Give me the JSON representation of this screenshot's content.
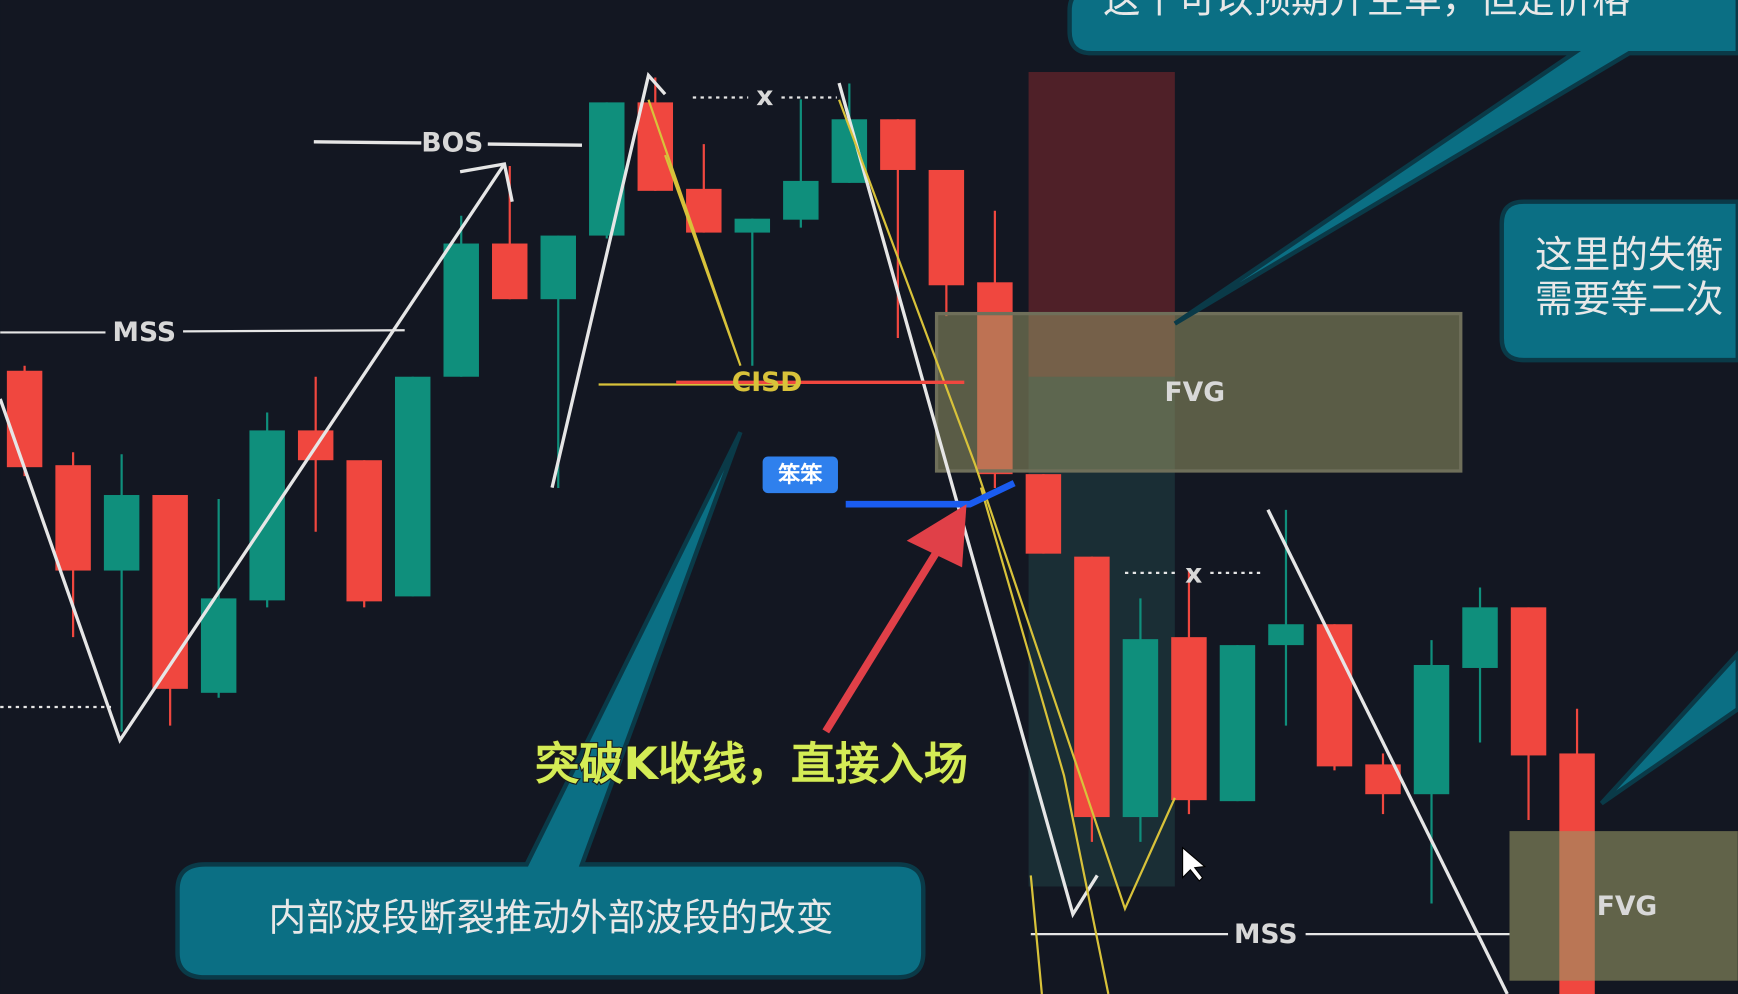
{
  "chart_data": {
    "type": "candlestick",
    "up_color": "#0f8f7c",
    "down_color": "#f0473f",
    "ylim": [
      0,
      100
    ],
    "open": [
      62.7,
      53.2,
      42.6,
      50.2,
      30.3,
      39.6,
      56.7,
      53.7,
      40.0,
      62.1,
      75.5,
      69.9,
      76.3,
      89.7,
      81.0,
      76.6,
      77.9,
      81.6,
      88.0,
      82.9,
      71.6,
      52.3,
      44.0,
      17.8,
      35.9,
      19.4,
      35.1,
      37.2,
      23.1,
      20.1,
      32.8,
      38.9,
      24.2
    ],
    "high": [
      63.2,
      54.5,
      54.3,
      50.2,
      49.8,
      58.5,
      62.1,
      53.7,
      62.1,
      78.3,
      83.3,
      76.3,
      89.7,
      92.2,
      85.5,
      78.0,
      90.0,
      91.6,
      88.0,
      82.9,
      78.8,
      52.3,
      44.0,
      39.8,
      42.6,
      35.1,
      48.7,
      37.2,
      24.2,
      35.6,
      40.9,
      38.9,
      28.7
    ],
    "low": [
      52.1,
      35.9,
      26.4,
      27.0,
      29.8,
      38.9,
      46.5,
      38.9,
      40.0,
      62.1,
      69.9,
      50.9,
      76.0,
      80.8,
      76.6,
      63.2,
      77.1,
      81.6,
      66.0,
      68.2,
      50.9,
      44.3,
      15.3,
      15.3,
      18.1,
      19.4,
      27.0,
      22.5,
      18.1,
      9.1,
      25.3,
      17.5,
      0
    ],
    "close": [
      53.0,
      42.6,
      50.2,
      30.7,
      39.8,
      56.7,
      53.7,
      39.5,
      62.1,
      75.5,
      69.9,
      76.3,
      89.7,
      80.8,
      76.6,
      78.0,
      81.8,
      88.0,
      82.9,
      71.3,
      52.3,
      44.3,
      17.8,
      35.7,
      19.5,
      35.1,
      37.2,
      22.9,
      20.1,
      33.1,
      38.9,
      24.0,
      0
    ],
    "annotations": {
      "bos": "BOS",
      "mss_left": "MSS",
      "mss_right": "MSS",
      "x_top": "x",
      "x_mid": "x",
      "cisd": "CISD",
      "fvg_top": "FVG",
      "fvg_bottom": "FVG",
      "badge": "笨笨",
      "entry": "突破K收线，直接入场",
      "callout_bottom": "内部波段断裂推动外部波段的改变",
      "callout_top": "这个可以预期开空单，但是价格",
      "callout_right_1": "这里的失衡",
      "callout_right_2": "需要等二次"
    }
  }
}
